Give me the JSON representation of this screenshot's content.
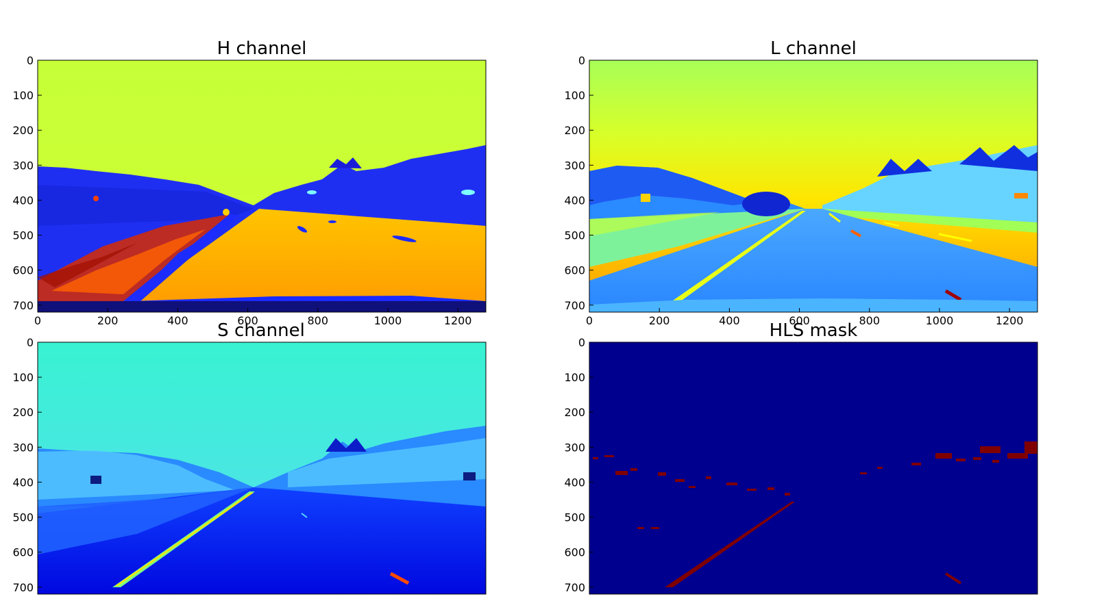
{
  "figure": {
    "panels": [
      {
        "title": "H channel",
        "colormap": "jet",
        "yticks": [
          "0",
          "100",
          "200",
          "300",
          "400",
          "500",
          "600",
          "700"
        ],
        "xticks": [
          "0",
          "200",
          "400",
          "600",
          "800",
          "1000",
          "1200"
        ]
      },
      {
        "title": "L channel",
        "colormap": "jet",
        "yticks": [
          "0",
          "100",
          "200",
          "300",
          "400",
          "500",
          "600",
          "700"
        ],
        "xticks": [
          "0",
          "200",
          "400",
          "600",
          "800",
          "1000",
          "1200"
        ]
      },
      {
        "title": "S channel",
        "colormap": "jet",
        "yticks": [
          "0",
          "100",
          "200",
          "300",
          "400",
          "500",
          "600",
          "700"
        ],
        "xticks": []
      },
      {
        "title": "HLS mask",
        "colormap": "jet",
        "yticks": [
          "0",
          "100",
          "200",
          "300",
          "400",
          "500",
          "600",
          "700"
        ],
        "xticks": []
      }
    ],
    "image_size": {
      "width": 1280,
      "height": 720
    },
    "colors": {
      "jet_dark_blue": "#00008f",
      "jet_blue": "#0000ff",
      "jet_cyan": "#00ffff",
      "jet_yellow_green": "#b4ff48",
      "jet_yellow": "#ffff00",
      "jet_orange": "#ff8c00",
      "jet_dark_red": "#800000"
    }
  }
}
